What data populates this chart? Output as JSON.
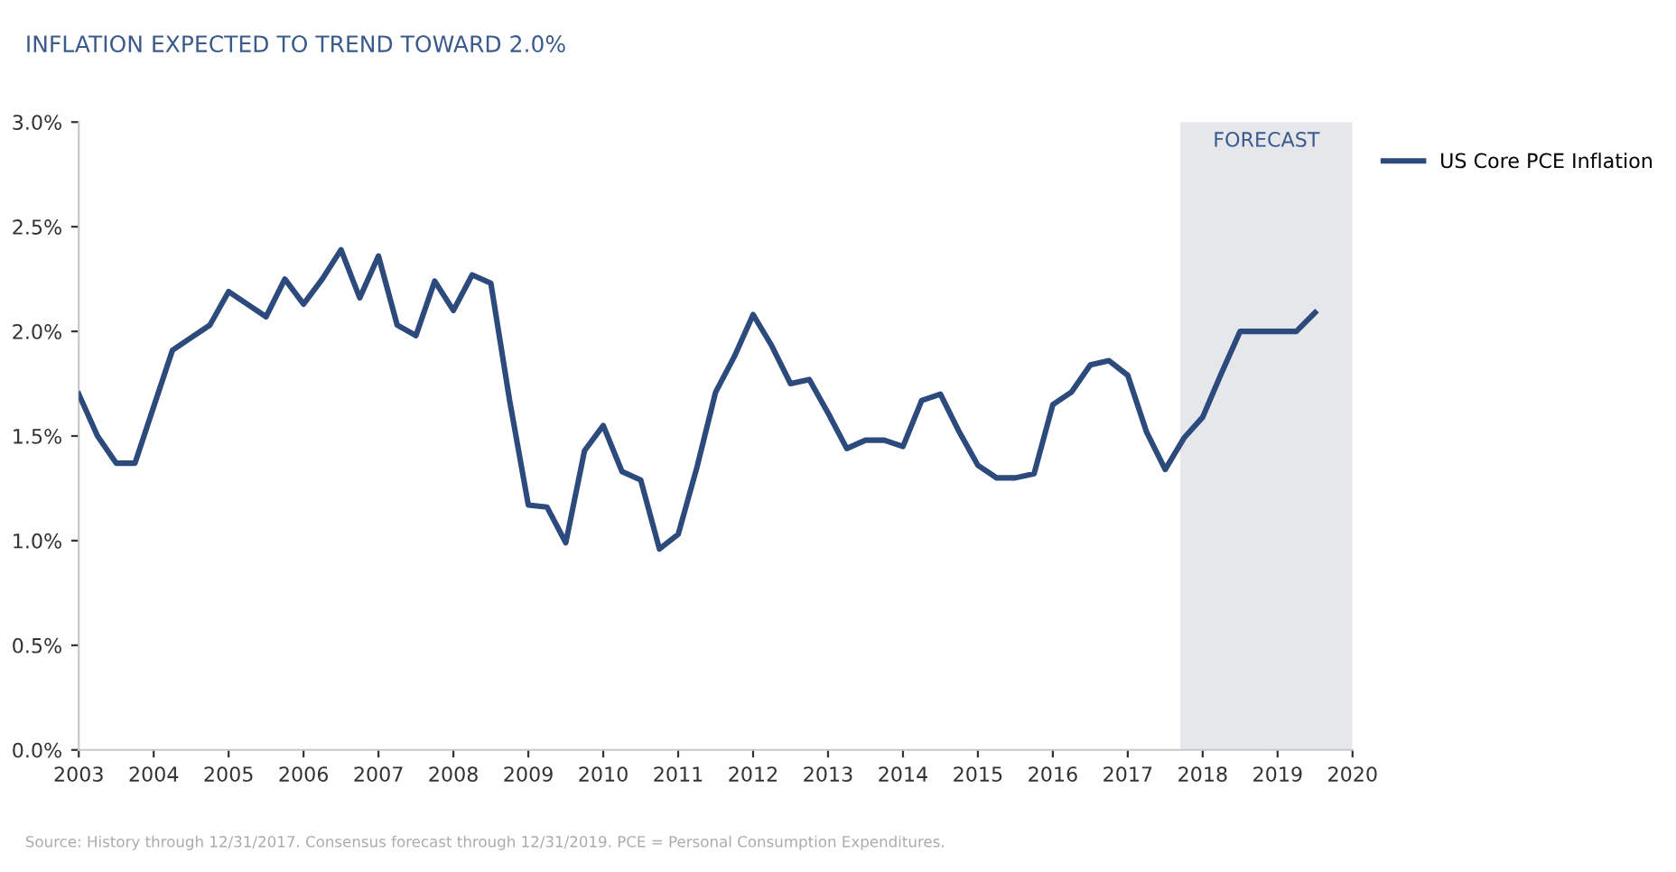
{
  "chart_data": {
    "type": "line",
    "title": "INFLATION EXPECTED TO TREND TOWARD 2.0%",
    "x": [
      2003.0,
      2003.25,
      2003.5,
      2003.75,
      2004.0,
      2004.25,
      2004.5,
      2004.75,
      2005.0,
      2005.25,
      2005.5,
      2005.75,
      2006.0,
      2006.25,
      2006.5,
      2006.75,
      2007.0,
      2007.25,
      2007.5,
      2007.75,
      2008.0,
      2008.25,
      2008.5,
      2008.75,
      2009.0,
      2009.25,
      2009.5,
      2009.75,
      2010.0,
      2010.25,
      2010.5,
      2010.75,
      2011.0,
      2011.25,
      2011.5,
      2011.75,
      2012.0,
      2012.25,
      2012.5,
      2012.75,
      2013.0,
      2013.25,
      2013.5,
      2013.75,
      2014.0,
      2014.25,
      2014.5,
      2014.75,
      2015.0,
      2015.25,
      2015.5,
      2015.75,
      2016.0,
      2016.25,
      2016.5,
      2016.75,
      2017.0,
      2017.25,
      2017.5,
      2017.75,
      2018.0,
      2018.25,
      2018.5,
      2018.75,
      2019.0,
      2019.25,
      2019.5
    ],
    "series": [
      {
        "name": "US Core PCE Inflation",
        "color": "#2c4a7c",
        "values": [
          1.7,
          1.5,
          1.37,
          1.37,
          1.64,
          1.91,
          1.97,
          2.03,
          2.19,
          2.13,
          2.07,
          2.25,
          2.13,
          2.25,
          2.39,
          2.16,
          2.36,
          2.03,
          1.98,
          2.24,
          2.1,
          2.27,
          2.23,
          1.67,
          1.17,
          1.16,
          0.99,
          1.43,
          1.55,
          1.33,
          1.29,
          0.96,
          1.03,
          1.35,
          1.71,
          1.88,
          2.08,
          1.93,
          1.75,
          1.77,
          1.61,
          1.44,
          1.48,
          1.48,
          1.45,
          1.67,
          1.7,
          1.52,
          1.36,
          1.3,
          1.3,
          1.32,
          1.65,
          1.71,
          1.84,
          1.86,
          1.79,
          1.52,
          1.34,
          1.49,
          1.59,
          1.8,
          2.0,
          2.0,
          2.0,
          2.0,
          2.09
        ]
      }
    ],
    "xlim": [
      2003,
      2020
    ],
    "xticks": [
      2003,
      2004,
      2005,
      2006,
      2007,
      2008,
      2009,
      2010,
      2011,
      2012,
      2013,
      2014,
      2015,
      2016,
      2017,
      2018,
      2019,
      2020
    ],
    "ylim": [
      0,
      3
    ],
    "yticks": [
      {
        "value": 0,
        "label": "0.0%"
      },
      {
        "value": 0.5,
        "label": "0.5%"
      },
      {
        "value": 1,
        "label": "1.0%"
      },
      {
        "value": 1.5,
        "label": "1.5%"
      },
      {
        "value": 2,
        "label": "2.0%"
      },
      {
        "value": 2.5,
        "label": "2.5%"
      },
      {
        "value": 3,
        "label": "3.0%"
      }
    ],
    "bands": [
      {
        "axis": "x",
        "from": 2017.7,
        "to": 2020,
        "label": "FORECAST",
        "color": "#e6e7eb"
      }
    ],
    "grid": false,
    "legend": "top right",
    "marker": "none",
    "line_style": "solid",
    "annotations": [
      "Source: History through 12/31/2017. Consensus forecast through 12/31/2019. PCE = Personal Consumption Expenditures."
    ]
  }
}
